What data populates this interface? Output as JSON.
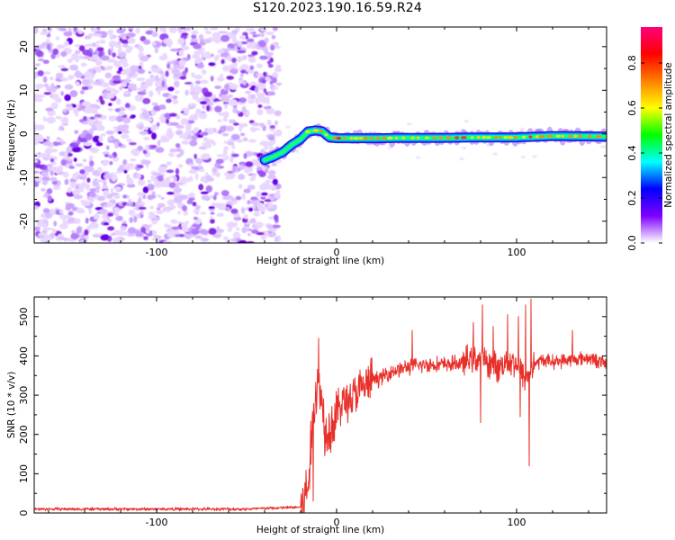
{
  "title": "S120.2023.190.16.59.R24",
  "chart_data": [
    {
      "type": "heatmap",
      "xlabel": "Height of straight line (km)",
      "ylabel": "Frequency (Hz)",
      "xlim": [
        -168,
        150
      ],
      "ylim": [
        -25,
        24.5
      ],
      "x_ticks": [
        -100,
        0,
        100
      ],
      "y_ticks": [
        -20,
        -10,
        0,
        10,
        20
      ],
      "noise_region_x": [
        -168,
        -32
      ],
      "ridge": {
        "x": [
          -40,
          -35,
          -30,
          -25,
          -20,
          -16,
          -12,
          -8,
          -4,
          0,
          20,
          40,
          60,
          80,
          100,
          120,
          150
        ],
        "frequency_hz": [
          -6,
          -5.2,
          -4.2,
          -2.5,
          -1.2,
          0.5,
          0.8,
          0.6,
          -0.8,
          -1,
          -1,
          -0.9,
          -0.9,
          -0.8,
          -0.8,
          -0.5,
          -0.6
        ]
      },
      "colorbar": {
        "label": "Normalized spectral amplitude",
        "range": [
          0,
          0.96
        ],
        "ticks": [
          "0.0",
          "0.2",
          "0.4",
          "0.6",
          "0.8"
        ],
        "colormap": [
          "#ffffff",
          "#7f00ff",
          "#0000ff",
          "#00ffff",
          "#00ff00",
          "#ffff00",
          "#ff7f00",
          "#ff0000",
          "#ff007f"
        ]
      }
    },
    {
      "type": "line",
      "xlabel": "Height of straight line (km)",
      "ylabel": "SNR (10 * v/v)",
      "xlim": [
        -168,
        150
      ],
      "ylim": [
        0,
        550
      ],
      "x_ticks": [
        -100,
        0,
        100
      ],
      "y_ticks": [
        0,
        100,
        200,
        300,
        400,
        500
      ],
      "color": "#e8302a",
      "series": [
        {
          "x": [
            -168,
            -100,
            -50,
            -20,
            -16,
            -14,
            -12,
            -10,
            -8,
            -6,
            -5,
            -4,
            -2,
            0,
            2,
            5,
            10,
            15,
            20,
            25,
            30,
            40,
            50,
            60,
            70,
            75,
            80,
            85,
            90,
            95,
            100,
            105,
            110,
            115,
            120,
            130,
            140,
            150
          ],
          "y": [
            10,
            10,
            10,
            15,
            60,
            180,
            300,
            340,
            280,
            200,
            245,
            210,
            230,
            250,
            280,
            285,
            300,
            320,
            340,
            345,
            360,
            372,
            378,
            378,
            382,
            395,
            390,
            380,
            370,
            390,
            380,
            340,
            380,
            390,
            385,
            390,
            395,
            380
          ]
        }
      ],
      "spikes": [
        {
          "x": -10,
          "y": 445
        },
        {
          "x": -13,
          "y": 30
        },
        {
          "x": 42,
          "y": 465
        },
        {
          "x": 76,
          "y": 485
        },
        {
          "x": 80,
          "y": 230
        },
        {
          "x": 81,
          "y": 530
        },
        {
          "x": 87,
          "y": 475
        },
        {
          "x": 95,
          "y": 505
        },
        {
          "x": 96,
          "y": 360
        },
        {
          "x": 101,
          "y": 500
        },
        {
          "x": 102,
          "y": 245
        },
        {
          "x": 105,
          "y": 530
        },
        {
          "x": 107,
          "y": 120
        },
        {
          "x": 108,
          "y": 545
        },
        {
          "x": 131,
          "y": 465
        }
      ]
    }
  ]
}
